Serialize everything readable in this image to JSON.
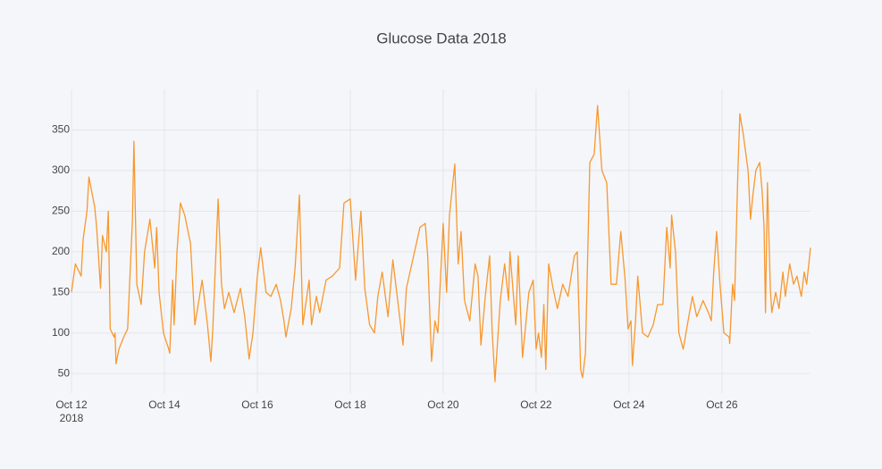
{
  "chart_data": {
    "type": "line",
    "title": "Glucose Data 2018",
    "x": [
      "2018-10-12 00:00",
      "2018-10-12 02:00",
      "2018-10-12 05:00",
      "2018-10-12 06:00",
      "2018-10-12 08:00",
      "2018-10-12 09:00",
      "2018-10-12 12:00",
      "2018-10-12 13:00",
      "2018-10-12 15:00",
      "2018-10-12 16:00",
      "2018-10-12 18:00",
      "2018-10-12 19:00",
      "2018-10-12 20:00",
      "2018-10-12 22:00",
      "2018-10-12 22:30",
      "2018-10-12 23:00",
      "2018-10-13 00:30",
      "2018-10-13 03:00",
      "2018-10-13 05:00",
      "2018-10-13 07:30",
      "2018-10-13 08:15",
      "2018-10-13 09:45",
      "2018-10-13 12:00",
      "2018-10-13 13:45",
      "2018-10-13 16:30",
      "2018-10-13 19:00",
      "2018-10-13 20:00",
      "2018-10-13 21:15",
      "2018-10-13 23:30",
      "2018-10-14 02:15",
      "2018-10-14 02:45",
      "2018-10-14 04:15",
      "2018-10-14 05:00",
      "2018-10-14 06:30",
      "2018-10-14 08:15",
      "2018-10-14 10:30",
      "2018-10-14 13:30",
      "2018-10-14 15:45",
      "2018-10-14 19:30",
      "2018-10-14 22:15",
      "2018-10-15 00:00",
      "2018-10-15 01:00",
      "2018-10-15 03:45",
      "2018-10-15 05:30",
      "2018-10-15 07:00",
      "2018-10-15 09:15",
      "2018-10-15 12:00",
      "2018-10-15 15:15",
      "2018-10-15 17:30",
      "2018-10-15 19:45",
      "2018-10-15 21:45",
      "2018-10-16 00:00",
      "2018-10-16 01:45",
      "2018-10-16 04:30",
      "2018-10-16 07:00",
      "2018-10-16 09:45",
      "2018-10-16 12:00",
      "2018-10-16 13:45",
      "2018-10-16 14:45",
      "2018-10-16 17:30",
      "2018-10-16 19:30",
      "2018-10-16 21:45",
      "2018-10-16 23:30",
      "2018-10-17 02:45",
      "2018-10-17 04:00",
      "2018-10-17 06:30",
      "2018-10-17 08:15",
      "2018-10-17 11:30",
      "2018-10-17 14:45",
      "2018-10-17 18:30",
      "2018-10-17 20:45",
      "2018-10-18 00:00",
      "2018-10-18 02:45",
      "2018-10-18 05:30",
      "2018-10-18 07:30",
      "2018-10-18 10:00",
      "2018-10-18 12:30",
      "2018-10-18 14:15",
      "2018-10-18 16:30",
      "2018-10-18 19:30",
      "2018-10-18 22:00",
      "2018-10-19 01:00",
      "2018-10-19 03:15",
      "2018-10-19 05:00",
      "2018-10-19 12:00",
      "2018-10-19 14:45",
      "2018-10-19 16:00",
      "2018-10-19 18:00",
      "2018-10-19 19:45",
      "2018-10-19 21:15",
      "2018-10-20 00:00",
      "2018-10-20 01:45",
      "2018-10-20 03:15",
      "2018-10-20 06:00",
      "2018-10-20 07:45",
      "2018-10-20 09:15",
      "2018-10-20 11:00",
      "2018-10-20 13:45",
      "2018-10-20 16:30",
      "2018-10-20 18:00",
      "2018-10-20 19:30",
      "2018-10-20 21:45",
      "2018-10-21 00:00",
      "2018-10-21 01:15",
      "2018-10-21 02:45",
      "2018-10-21 05:30",
      "2018-10-21 07:45",
      "2018-10-21 09:45",
      "2018-10-21 10:30",
      "2018-10-21 13:30",
      "2018-10-21 14:45",
      "2018-10-21 17:00",
      "2018-10-21 20:15",
      "2018-10-21 22:30",
      "2018-10-22 00:00",
      "2018-10-22 01:15",
      "2018-10-22 02:45",
      "2018-10-22 04:00",
      "2018-10-22 05:00",
      "2018-10-22 06:30",
      "2018-10-22 08:45",
      "2018-10-22 11:00",
      "2018-10-22 13:45",
      "2018-10-22 16:30",
      "2018-10-22 19:45",
      "2018-10-22 21:15",
      "2018-10-22 23:00",
      "2018-10-23 00:00",
      "2018-10-23 01:30",
      "2018-10-23 03:45",
      "2018-10-23 06:00",
      "2018-10-23 07:45",
      "2018-10-23 10:00",
      "2018-10-23 12:30",
      "2018-10-23 14:45",
      "2018-10-23 17:30",
      "2018-10-23 19:45",
      "2018-10-23 22:00",
      "2018-10-23 23:30",
      "2018-10-24 01:00",
      "2018-10-24 01:45",
      "2018-10-24 03:15",
      "2018-10-24 04:30",
      "2018-10-24 07:00",
      "2018-10-24 09:45",
      "2018-10-24 12:30",
      "2018-10-24 14:45",
      "2018-10-24 17:30",
      "2018-10-24 19:30",
      "2018-10-24 21:15",
      "2018-10-24 22:00",
      "2018-10-25 00:00",
      "2018-10-25 01:45",
      "2018-10-25 04:00",
      "2018-10-25 06:30",
      "2018-10-25 08:45",
      "2018-10-25 11:00",
      "2018-10-25 14:15",
      "2018-10-25 17:00",
      "2018-10-25 18:30",
      "2018-10-25 19:45",
      "2018-10-25 21:15",
      "2018-10-25 23:00",
      "2018-10-26 01:00",
      "2018-10-26 03:45",
      "2018-10-26 04:00",
      "2018-10-26 05:30",
      "2018-10-26 06:30",
      "2018-10-26 08:15",
      "2018-10-26 09:15",
      "2018-10-26 11:00",
      "2018-10-26 13:30",
      "2018-10-26 14:45",
      "2018-10-26 16:00",
      "2018-10-26 17:30",
      "2018-10-26 19:30",
      "2018-10-26 20:45",
      "2018-10-26 21:45",
      "2018-10-26 22:30",
      "2018-10-26 23:30",
      "2018-10-27 01:00",
      "2018-10-27 01:45",
      "2018-10-27 03:45",
      "2018-10-27 05:30",
      "2018-10-27 07:30",
      "2018-10-27 08:45",
      "2018-10-27 11:00",
      "2018-10-27 13:00",
      "2018-10-27 14:45",
      "2018-10-27 17:00",
      "2018-10-27 18:30",
      "2018-10-27 19:45",
      "2018-10-27 21:45"
    ],
    "series": [
      {
        "color": "#f7982f",
        "values": [
          150,
          185,
          170,
          215,
          250,
          292,
          255,
          230,
          155,
          220,
          200,
          250,
          105,
          95,
          100,
          62,
          80,
          95,
          105,
          240,
          336,
          160,
          135,
          200,
          240,
          180,
          230,
          150,
          100,
          80,
          75,
          165,
          110,
          200,
          260,
          245,
          210,
          110,
          165,
          110,
          65,
          105,
          265,
          160,
          130,
          150,
          125,
          155,
          120,
          68,
          100,
          170,
          205,
          150,
          145,
          160,
          140,
          115,
          95,
          130,
          180,
          270,
          110,
          165,
          110,
          145,
          125,
          165,
          170,
          180,
          260,
          265,
          165,
          250,
          155,
          110,
          100,
          145,
          175,
          120,
          190,
          130,
          85,
          155,
          230,
          235,
          195,
          65,
          115,
          100,
          235,
          150,
          245,
          308,
          185,
          225,
          140,
          115,
          185,
          170,
          85,
          145,
          195,
          105,
          40,
          140,
          185,
          140,
          200,
          110,
          195,
          70,
          150,
          165,
          80,
          100,
          70,
          135,
          55,
          185,
          155,
          130,
          160,
          145,
          195,
          200,
          55,
          45,
          75,
          310,
          320,
          380,
          300,
          285,
          160,
          160,
          225,
          165,
          105,
          115,
          60,
          110,
          170,
          100,
          95,
          110,
          135,
          135,
          230,
          180,
          245,
          200,
          100,
          80,
          115,
          145,
          120,
          140,
          125,
          115,
          175,
          225,
          160,
          100,
          95,
          87,
          160,
          140,
          300,
          370,
          345,
          300,
          240,
          270,
          300,
          310,
          275,
          230,
          125,
          285,
          155,
          125,
          150,
          130,
          175,
          145,
          185,
          160,
          170,
          145,
          175,
          160,
          205
        ]
      }
    ],
    "xlim": [
      "2018-10-12 00:00",
      "2018-10-27 21:45"
    ],
    "xticks": [
      {
        "value": "2018-10-12 00:00",
        "label": "Oct 12\n2018"
      },
      {
        "value": "2018-10-14 00:00",
        "label": "Oct 14"
      },
      {
        "value": "2018-10-16 00:00",
        "label": "Oct 16"
      },
      {
        "value": "2018-10-18 00:00",
        "label": "Oct 18"
      },
      {
        "value": "2018-10-20 00:00",
        "label": "Oct 20"
      },
      {
        "value": "2018-10-22 00:00",
        "label": "Oct 22"
      },
      {
        "value": "2018-10-24 00:00",
        "label": "Oct 24"
      },
      {
        "value": "2018-10-26 00:00",
        "label": "Oct 26"
      }
    ],
    "ylim": [
      26,
      400
    ],
    "yticks": [
      50,
      100,
      150,
      200,
      250,
      300,
      350
    ],
    "grid": true
  }
}
